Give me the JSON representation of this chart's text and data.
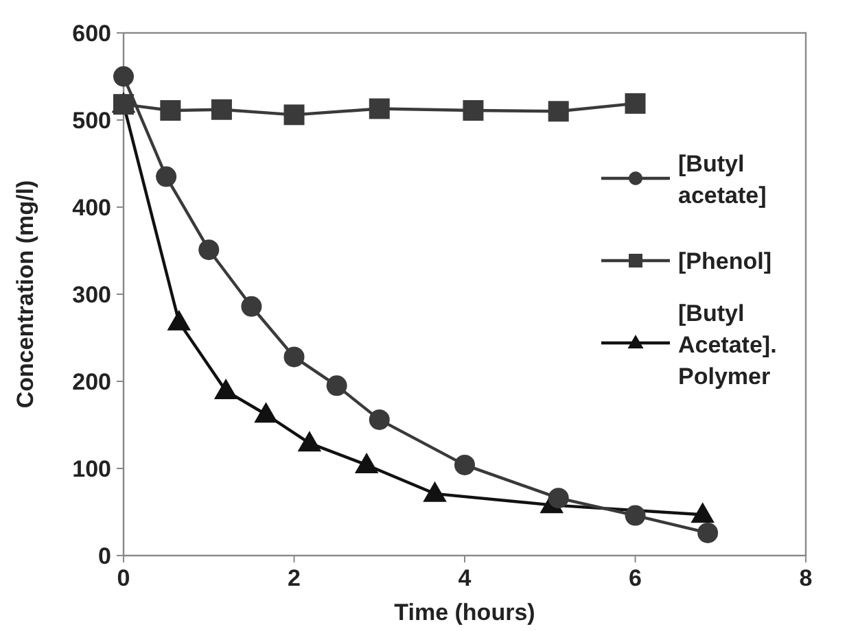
{
  "chart_data": {
    "type": "line",
    "xlabel": "Time (hours)",
    "ylabel": "Concentration (mg/l)",
    "xlim": [
      0,
      8
    ],
    "xticks": [
      0,
      2,
      4,
      6,
      8
    ],
    "ylim": [
      0,
      600
    ],
    "yticks": [
      0,
      100,
      200,
      300,
      400,
      500,
      600
    ],
    "grid": false,
    "legend": "right",
    "series": [
      {
        "name": "[Butyl acetate]",
        "color": "#3a3a3a",
        "marker": "circle",
        "x": [
          0,
          0.5,
          1,
          1.5,
          2,
          2.5,
          3,
          4,
          5.1,
          6,
          6.85
        ],
        "values": [
          550,
          435,
          351,
          286,
          228,
          195,
          156,
          104,
          66,
          46,
          26
        ]
      },
      {
        "name": "[Phenol]",
        "color": "#3a3a3a",
        "marker": "square",
        "x": [
          0,
          0.55,
          1.15,
          2,
          3,
          4.1,
          5.1,
          6
        ],
        "values": [
          518,
          511,
          512,
          506,
          513,
          511,
          510,
          519
        ]
      },
      {
        "name": "[Butyl Acetate]. Polymer",
        "color": "#111111",
        "marker": "triangle",
        "x": [
          0,
          0.65,
          1.2,
          1.67,
          2.18,
          2.85,
          3.65,
          5.02,
          6.79
        ],
        "values": [
          518,
          268,
          189,
          162,
          129,
          104,
          71,
          58,
          47
        ]
      }
    ]
  }
}
